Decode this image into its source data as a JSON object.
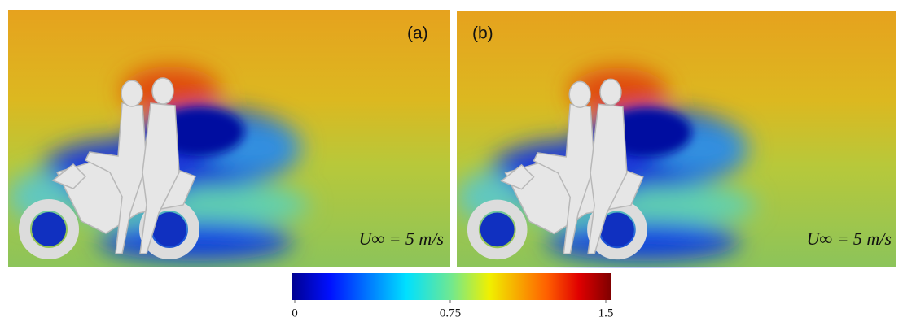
{
  "panels": [
    {
      "label": "(a)",
      "annotation": "U∞ = 5 m/s"
    },
    {
      "label": "(b)",
      "annotation": "U∞ = 5 m/s"
    }
  ],
  "colorbar": {
    "lim": [
      0,
      1.5
    ],
    "ticks": [
      0,
      0.75,
      1.5
    ]
  }
}
